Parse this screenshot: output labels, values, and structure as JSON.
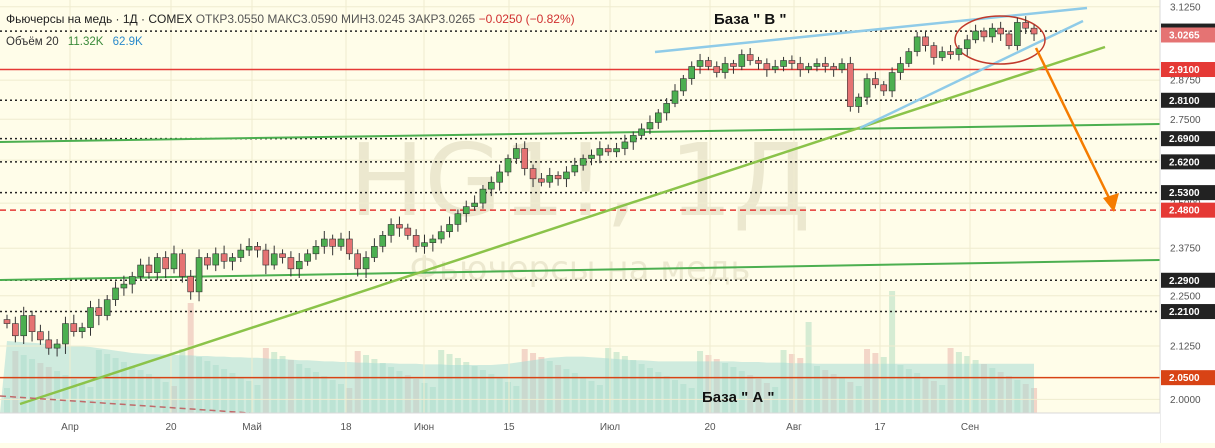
{
  "header": {
    "title": "Фьючерсы на медь · 1Д · COMEX",
    "ohlc": "ОТКР3.0550 МАКС3.0590 МИН3.0245 ЗАКР3.0265",
    "change": "−0.0250 (−0.82%)",
    "volume_label": "Объём 20",
    "volume_v1": "11.32K",
    "volume_v2": "62.9K"
  },
  "watermark": {
    "symbol": "HG1!, 1Д",
    "name": "Фьючерсы на медь"
  },
  "colors": {
    "up": "#4caf50",
    "down": "#e57373",
    "level_red": "#e53935",
    "level_orange": "#d84315",
    "trend_green": "#8bc34a",
    "channel_green": "#4caf50",
    "channel_blue": "#8fcbe8",
    "arrow": "#f57c00"
  },
  "chart_data": {
    "type": "candlestick",
    "y_scale": "log",
    "ylim": [
      1.985,
      3.135
    ],
    "x_labels": [
      "Апр",
      "20",
      "Май",
      "18",
      "Июн",
      "15",
      "Июл",
      "20",
      "Авг",
      "17",
      "Сен"
    ],
    "y_ticks": [
      "3.1250",
      "2.8750",
      "2.7500",
      "2.6250",
      "2.5000",
      "2.3750",
      "2.2500",
      "2.1250",
      "2.0000"
    ],
    "price_tag": "3.0265",
    "levels": [
      {
        "value": 3.04,
        "label": "3.0400",
        "style": "dotted",
        "color": "#222222"
      },
      {
        "value": 2.91,
        "label": "2.9100",
        "style": "solid",
        "color": "#e53935"
      },
      {
        "value": 2.81,
        "label": "2.8100",
        "style": "dotted",
        "color": "#222222"
      },
      {
        "value": 2.69,
        "label": "2.6900",
        "style": "dotted",
        "color": "#222222"
      },
      {
        "value": 2.62,
        "label": "2.6200",
        "style": "dotted",
        "color": "#222222"
      },
      {
        "value": 2.53,
        "label": "2.5300",
        "style": "dotted",
        "color": "#222222"
      },
      {
        "value": 2.48,
        "label": "2.4800",
        "style": "dashed",
        "color": "#e53935"
      },
      {
        "value": 2.29,
        "label": "2.2900",
        "style": "dotted",
        "color": "#222222"
      },
      {
        "value": 2.21,
        "label": "2.2100",
        "style": "dotted",
        "color": "#222222"
      },
      {
        "value": 2.05,
        "label": "2.0500",
        "style": "solid",
        "color": "#d84315"
      }
    ],
    "annotations": [
      {
        "text": "База \" В \""
      },
      {
        "text": "База \" А \""
      }
    ],
    "closes": [
      2.18,
      2.15,
      2.2,
      2.16,
      2.14,
      2.12,
      2.13,
      2.18,
      2.16,
      2.17,
      2.22,
      2.2,
      2.24,
      2.27,
      2.28,
      2.3,
      2.33,
      2.31,
      2.35,
      2.32,
      2.36,
      2.3,
      2.26,
      2.35,
      2.33,
      2.36,
      2.34,
      2.35,
      2.37,
      2.38,
      2.37,
      2.33,
      2.36,
      2.35,
      2.32,
      2.34,
      2.36,
      2.38,
      2.4,
      2.38,
      2.4,
      2.36,
      2.32,
      2.35,
      2.38,
      2.41,
      2.44,
      2.43,
      2.41,
      2.38,
      2.39,
      2.4,
      2.42,
      2.44,
      2.47,
      2.49,
      2.5,
      2.54,
      2.56,
      2.59,
      2.63,
      2.66,
      2.6,
      2.57,
      2.56,
      2.58,
      2.57,
      2.59,
      2.61,
      2.63,
      2.64,
      2.66,
      2.65,
      2.66,
      2.68,
      2.7,
      2.72,
      2.74,
      2.77,
      2.8,
      2.84,
      2.88,
      2.92,
      2.94,
      2.92,
      2.9,
      2.93,
      2.92,
      2.96,
      2.94,
      2.93,
      2.91,
      2.92,
      2.94,
      2.93,
      2.91,
      2.92,
      2.93,
      2.92,
      2.91,
      2.93,
      2.79,
      2.82,
      2.88,
      2.86,
      2.84,
      2.9,
      2.93,
      2.97,
      3.02,
      2.99,
      2.95,
      2.97,
      2.96,
      2.98,
      3.01,
      3.04,
      3.02,
      3.05,
      3.03,
      2.99,
      3.07,
      3.05,
      3.03
    ],
    "volume_line": [
      120,
      119,
      118,
      117,
      116,
      115,
      114,
      113,
      112,
      111,
      110,
      108,
      106,
      104,
      102,
      100,
      99,
      98,
      98,
      97,
      97,
      96,
      96,
      95,
      95,
      94,
      94,
      93,
      93,
      92,
      92,
      91,
      90,
      90,
      89,
      88,
      88,
      87,
      86,
      86,
      85,
      85,
      84,
      84,
      83,
      83,
      83,
      82,
      82,
      82,
      81,
      81,
      81,
      80,
      80,
      80,
      80,
      80,
      80,
      81,
      82,
      84,
      86,
      88,
      90,
      92,
      93,
      94,
      94,
      94,
      93,
      92,
      91,
      90,
      89,
      88,
      88,
      87,
      86,
      86,
      86,
      86,
      86,
      86,
      86,
      86,
      86,
      86,
      85,
      85,
      85,
      84,
      84,
      84,
      83,
      83,
      83,
      82,
      82,
      82,
      82,
      82,
      82,
      82,
      82,
      82,
      82,
      82,
      82,
      82,
      82,
      82,
      82,
      82,
      82,
      82,
      82,
      82,
      82,
      82,
      82,
      82,
      82,
      82
    ]
  }
}
